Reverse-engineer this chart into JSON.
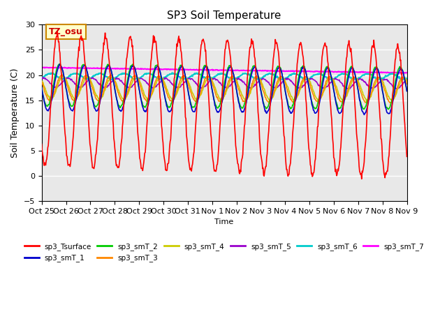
{
  "title": "SP3 Soil Temperature",
  "ylabel": "Soil Temperature (C)",
  "xlabel": "Time",
  "annotation": "TZ_osu",
  "ylim": [
    -5,
    30
  ],
  "yticks": [
    -5,
    0,
    5,
    10,
    15,
    20,
    25,
    30
  ],
  "background_color": "#ffffff",
  "plot_bg_color": "#e8e8e8",
  "series_colors": {
    "sp3_Tsurface": "#ff0000",
    "sp3_smT_1": "#0000cc",
    "sp3_smT_2": "#00cc00",
    "sp3_smT_3": "#ff8800",
    "sp3_smT_4": "#cccc00",
    "sp3_smT_5": "#9900cc",
    "sp3_smT_6": "#00cccc",
    "sp3_smT_7": "#ff00ff"
  },
  "xtick_labels": [
    "Oct 25",
    "Oct 26",
    "Oct 27",
    "Oct 28",
    "Oct 29",
    "Oct 30",
    "Oct 31",
    "Nov 1",
    "Nov 2",
    "Nov 3",
    "Nov 4",
    "Nov 5",
    "Nov 6",
    "Nov 7",
    "Nov 8",
    "Nov 9"
  ],
  "n_days": 15,
  "legend_ncol": 6
}
